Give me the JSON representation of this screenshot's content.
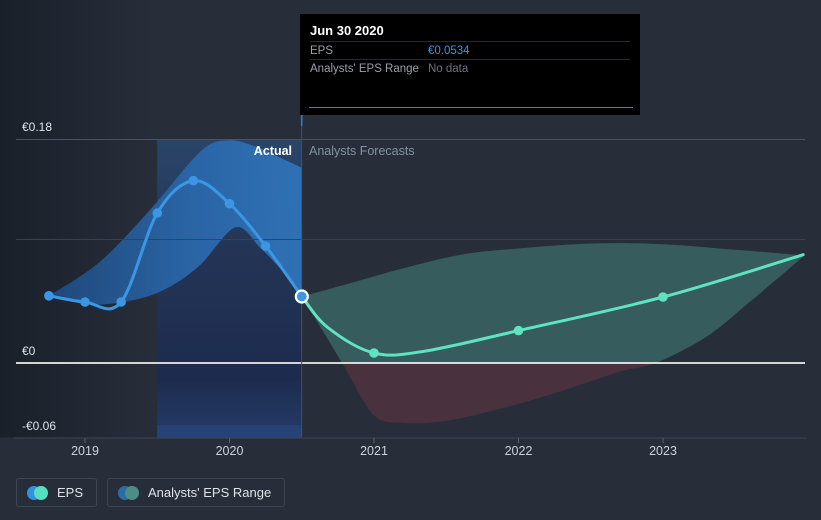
{
  "annotations": {
    "actual": "Actual",
    "forecasts": "Analysts Forecasts"
  },
  "tooltip": {
    "title": "Jun 30 2020",
    "rows": [
      {
        "label": "EPS",
        "value": "€0.0534",
        "value_color": "#3b97e3"
      },
      {
        "label": "Analysts' EPS Range",
        "value": "No data",
        "value_color": "#6d7380"
      }
    ]
  },
  "legend": [
    {
      "label": "EPS",
      "colors": [
        "#3391e2",
        "#55dfc0"
      ]
    },
    {
      "label": "Analysts' EPS Range",
      "colors": [
        "#2c6ca6",
        "#4d8d86"
      ]
    }
  ],
  "colors": {
    "background": "#272e3a",
    "eps_actual_line": "#3b97e3",
    "eps_forecast_line": "#5fe3c1",
    "actual_range_fill": "#2a66a8",
    "forecast_range_positive_fill": "rgba(100,225,196,0.26)",
    "forecast_range_negative_fill": "rgba(196,64,74,0.22)",
    "zero_line": "#f2edea",
    "tooltip_background": "#000000"
  },
  "chart_data": {
    "type": "line",
    "title": "EPS actual vs analysts forecasts",
    "unit": "EUR",
    "ylim": [
      -0.06,
      0.18
    ],
    "xlim": [
      2018.52,
      2023.98
    ],
    "grid": true,
    "legend_position": "bottom-left",
    "y_ticks": [
      {
        "label": "€0.18",
        "value": 0.18
      },
      {
        "label": "€0",
        "value": 0
      },
      {
        "label": "-€0.06",
        "value": -0.06
      }
    ],
    "x_ticks": [
      {
        "label": "2019",
        "year": 2019
      },
      {
        "label": "2020",
        "year": 2020
      },
      {
        "label": "2021",
        "year": 2021
      },
      {
        "label": "2022",
        "year": 2022
      },
      {
        "label": "2023",
        "year": 2023
      }
    ],
    "divider_year": 2020.5,
    "highlight_span": [
      2019.5,
      2020.5
    ],
    "selected_point": {
      "series": "EPS",
      "date": "Jun 30 2020",
      "year": 2020.5,
      "value": 0.0534
    },
    "series": [
      {
        "name": "EPS (actual)",
        "color": "#3b97e3",
        "points": [
          [
            2018.75,
            0.054
          ],
          [
            2019.0,
            0.049
          ],
          [
            2019.25,
            0.049
          ],
          [
            2019.5,
            0.1205
          ],
          [
            2019.75,
            0.1465
          ],
          [
            2020.0,
            0.128
          ],
          [
            2020.25,
            0.094
          ],
          [
            2020.5,
            0.0534
          ]
        ],
        "marker_years": [
          2018.75,
          2019.0,
          2019.25,
          2019.5,
          2019.75,
          2020.0,
          2020.25
        ]
      },
      {
        "name": "EPS (analysts forecast)",
        "color": "#5fe3c1",
        "points": [
          [
            2020.5,
            0.0534
          ],
          [
            2020.68,
            0.0285
          ],
          [
            2021.0,
            0.008
          ],
          [
            2021.35,
            0.0095
          ],
          [
            2022.0,
            0.026
          ],
          [
            2023.0,
            0.053
          ],
          [
            2023.97,
            0.087
          ]
        ],
        "marker_years": [
          2021.0,
          2022.0,
          2023.0
        ]
      }
    ],
    "actual_range": {
      "top": [
        [
          2018.75,
          0.054
        ],
        [
          2019.1,
          0.081
        ],
        [
          2019.45,
          0.123
        ],
        [
          2019.8,
          0.17
        ],
        [
          2019.99,
          0.179
        ],
        [
          2020.18,
          0.174
        ],
        [
          2020.35,
          0.165
        ],
        [
          2020.5,
          0.157
        ]
      ],
      "bottom": [
        [
          2018.75,
          0.054
        ],
        [
          2019.03,
          0.047
        ],
        [
          2019.31,
          0.05
        ],
        [
          2019.55,
          0.059
        ],
        [
          2019.79,
          0.078
        ],
        [
          2020.04,
          0.109
        ],
        [
          2020.21,
          0.093
        ],
        [
          2020.35,
          0.076
        ],
        [
          2020.5,
          0.056
        ]
      ]
    },
    "forecast_range": {
      "top": [
        [
          2020.5,
          0.0534
        ],
        [
          2020.8,
          0.063
        ],
        [
          2021.2,
          0.076
        ],
        [
          2021.6,
          0.087
        ],
        [
          2022.0,
          0.092
        ],
        [
          2022.5,
          0.096
        ],
        [
          2023.0,
          0.0955
        ],
        [
          2023.5,
          0.091
        ],
        [
          2023.97,
          0.0865
        ]
      ],
      "bottom": [
        [
          2020.5,
          0.0534
        ],
        [
          2020.65,
          0.025
        ],
        [
          2020.8,
          -0.004
        ],
        [
          2021.0,
          -0.042
        ],
        [
          2021.2,
          -0.048
        ],
        [
          2021.5,
          -0.0465
        ],
        [
          2021.9,
          -0.036
        ],
        [
          2022.3,
          -0.0225
        ],
        [
          2022.7,
          -0.007
        ],
        [
          2022.95,
          0.0
        ],
        [
          2023.3,
          0.021
        ],
        [
          2023.6,
          0.049
        ],
        [
          2023.97,
          0.0855
        ]
      ]
    }
  }
}
